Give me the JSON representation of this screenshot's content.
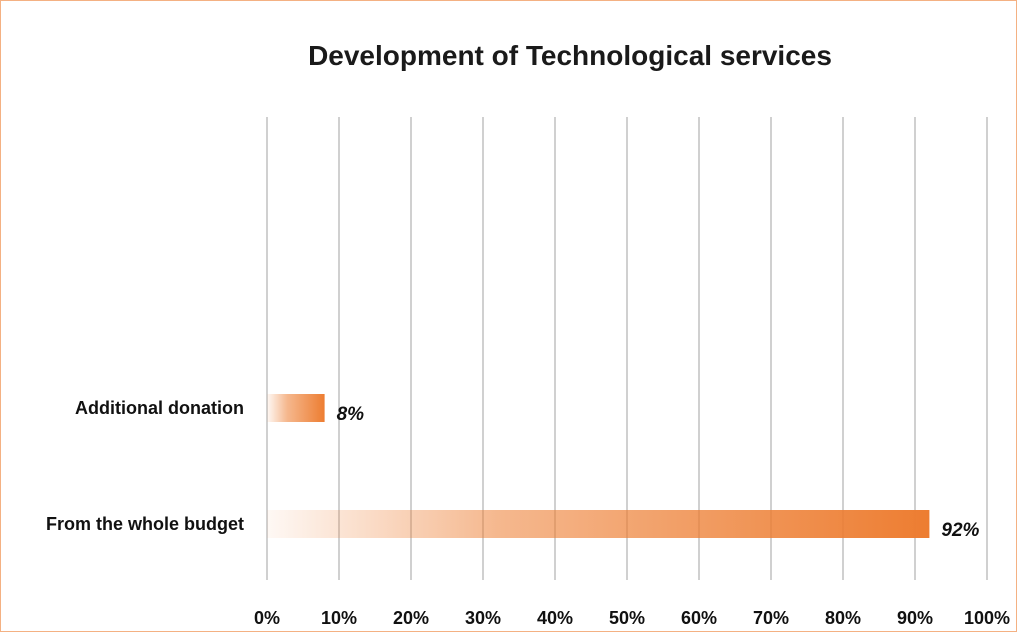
{
  "chart_data": {
    "type": "bar",
    "orientation": "horizontal",
    "title": "Development of Technological services",
    "categories": [
      "Additional donation",
      "From the whole budget"
    ],
    "values": [
      8,
      92
    ],
    "data_labels": [
      "8%",
      "92%"
    ],
    "xlim": [
      0,
      100
    ],
    "xticks": [
      "0%",
      "10%",
      "20%",
      "30%",
      "40%",
      "50%",
      "60%",
      "70%",
      "80%",
      "90%",
      "100%"
    ],
    "grid": "vertical",
    "legend": "none",
    "bar_color": "#ed7d31"
  }
}
